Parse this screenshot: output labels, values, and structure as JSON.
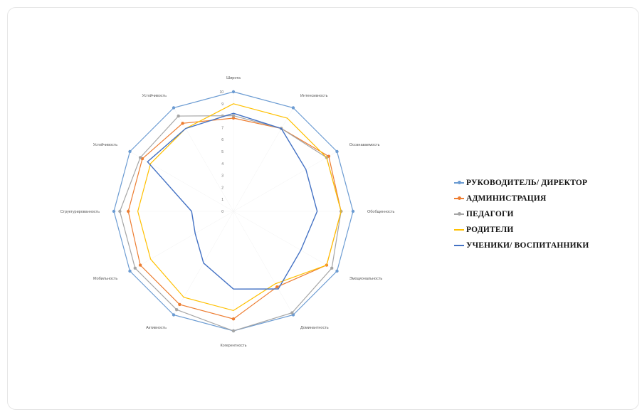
{
  "chart_data": {
    "type": "radar",
    "categories": [
      "Широта",
      "Интенсивность",
      "Осознаваемость",
      "Обобщенность",
      "Эмоциональность",
      "Доминантность",
      "Когерентность",
      "Активность",
      "Мобильность",
      "Структурированность",
      "Устойчивость",
      "Устойчивость"
    ],
    "ticks": [
      "0",
      "1",
      "2",
      "3",
      "4",
      "5",
      "6",
      "7",
      "8",
      "9",
      "10"
    ],
    "rmax": 10,
    "series": [
      {
        "name": "РУКОВОДИТЕЛЬ/ ДИРЕКТОР",
        "color": "#6b9bd2",
        "marker": "dot",
        "values": [
          10,
          10,
          10,
          10,
          10,
          10,
          10,
          10,
          10,
          10,
          10,
          10
        ]
      },
      {
        "name": "АДМИНИСТРАЦИЯ",
        "color": "#ed7d31",
        "marker": "dot",
        "values": [
          7.8,
          8,
          9.2,
          9,
          9,
          7.3,
          9,
          9,
          9,
          8.8,
          8.8,
          8.5
        ]
      },
      {
        "name": "ПЕДАГОГИ",
        "color": "#a5a5a5",
        "marker": "dot",
        "values": [
          8,
          8,
          9,
          9,
          9.5,
          9.8,
          10,
          9.5,
          9.5,
          9.5,
          9,
          9.2
        ]
      },
      {
        "name": "РОДИТЕЛИ",
        "color": "#ffc000",
        "marker": "none",
        "values": [
          9,
          9,
          9,
          9,
          9,
          7,
          8.3,
          8.3,
          8,
          8,
          8,
          8
        ]
      },
      {
        "name": "УЧЕНИКИ/ ВОСПИТАННИКИ",
        "color": "#4472c4",
        "marker": "none",
        "values": [
          8.2,
          8,
          7,
          7,
          6.5,
          7.5,
          6.5,
          5,
          3.7,
          3.5,
          8.3,
          8
        ]
      }
    ],
    "legend_position": "right"
  }
}
